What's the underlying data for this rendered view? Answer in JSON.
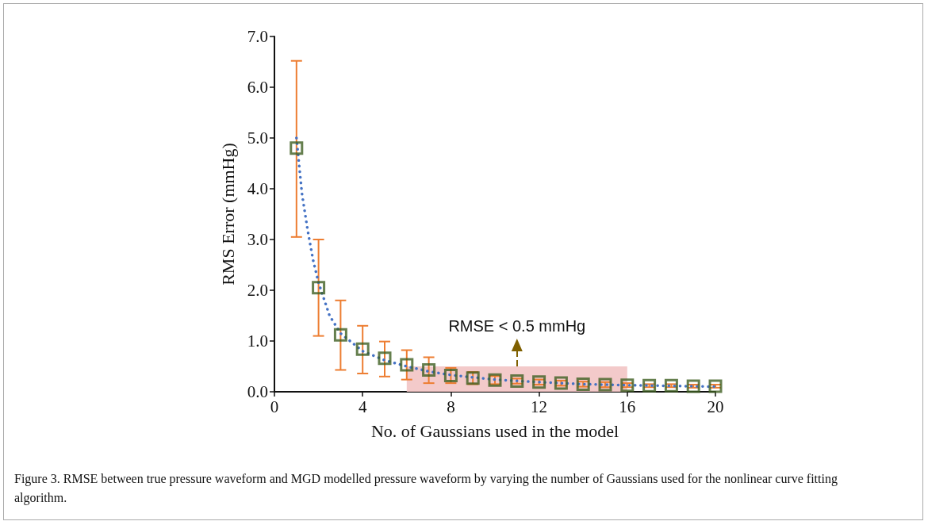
{
  "chart_data": {
    "type": "scatter",
    "xlabel": "No. of Gaussians used in the model",
    "ylabel": "RMS Error (mmHg)",
    "x": [
      1,
      2,
      3,
      4,
      5,
      6,
      7,
      8,
      9,
      10,
      11,
      12,
      13,
      14,
      15,
      16,
      17,
      18,
      19,
      20
    ],
    "series": [
      {
        "color": "#3f5f22",
        "marker": "square",
        "values": [
          4.8,
          2.05,
          1.12,
          0.84,
          0.66,
          0.53,
          0.43,
          0.32,
          0.27,
          0.23,
          0.21,
          0.19,
          0.17,
          0.15,
          0.14,
          0.13,
          0.12,
          0.12,
          0.11,
          0.11
        ],
        "errors": [
          [
            3.05,
            6.52
          ],
          [
            1.1,
            3.0
          ],
          [
            0.43,
            1.8
          ],
          [
            0.36,
            1.3
          ],
          [
            0.3,
            0.99
          ],
          [
            0.24,
            0.82
          ],
          [
            0.17,
            0.68
          ],
          [
            0.17,
            0.47
          ],
          [
            0.15,
            0.39
          ],
          [
            0.15,
            0.31
          ],
          0.05,
          0.05,
          0.05,
          0.05,
          0.05,
          0.04,
          0.03,
          0.03,
          0.03,
          0.03
        ]
      },
      {
        "type": "line",
        "color": "#4472c4",
        "line_style": "dotted",
        "marker": "none",
        "x": [
          1,
          1.25,
          1.5,
          1.75,
          2,
          2.5,
          3,
          4,
          5,
          6,
          7,
          8,
          10,
          12,
          14,
          16,
          20
        ],
        "values": [
          5.0,
          3.9,
          3.2,
          2.6,
          2.15,
          1.5,
          1.15,
          0.8,
          0.62,
          0.5,
          0.4,
          0.33,
          0.24,
          0.19,
          0.15,
          0.13,
          0.1
        ]
      }
    ],
    "xlim": [
      0,
      20
    ],
    "xticks": [
      0,
      4,
      8,
      12,
      16,
      20
    ],
    "ylim": [
      0,
      7
    ],
    "yticks": [
      {
        "value": 0,
        "label": "0.0"
      },
      {
        "value": 1,
        "label": "1.0"
      },
      {
        "value": 2,
        "label": "2.0"
      },
      {
        "value": 3,
        "label": "3.0"
      },
      {
        "value": 4,
        "label": "4.0"
      },
      {
        "value": 5,
        "label": "5.0"
      },
      {
        "value": 6,
        "label": "6.0"
      },
      {
        "value": 7,
        "label": "7.0"
      }
    ],
    "bands": [
      {
        "axis": "x",
        "from": 6,
        "to": 16,
        "color": "#f2c4c4"
      }
    ],
    "annotations": [
      {
        "text": "RMSE < 0.5 mmHg",
        "x": 11,
        "y": 0.5
      },
      "Figure 3. RMSE between true pressure waveform and MGD modelled pressure waveform by varying the number of Gaussians used for the nonlinear curve fitting algorithm."
    ],
    "grid": false
  }
}
